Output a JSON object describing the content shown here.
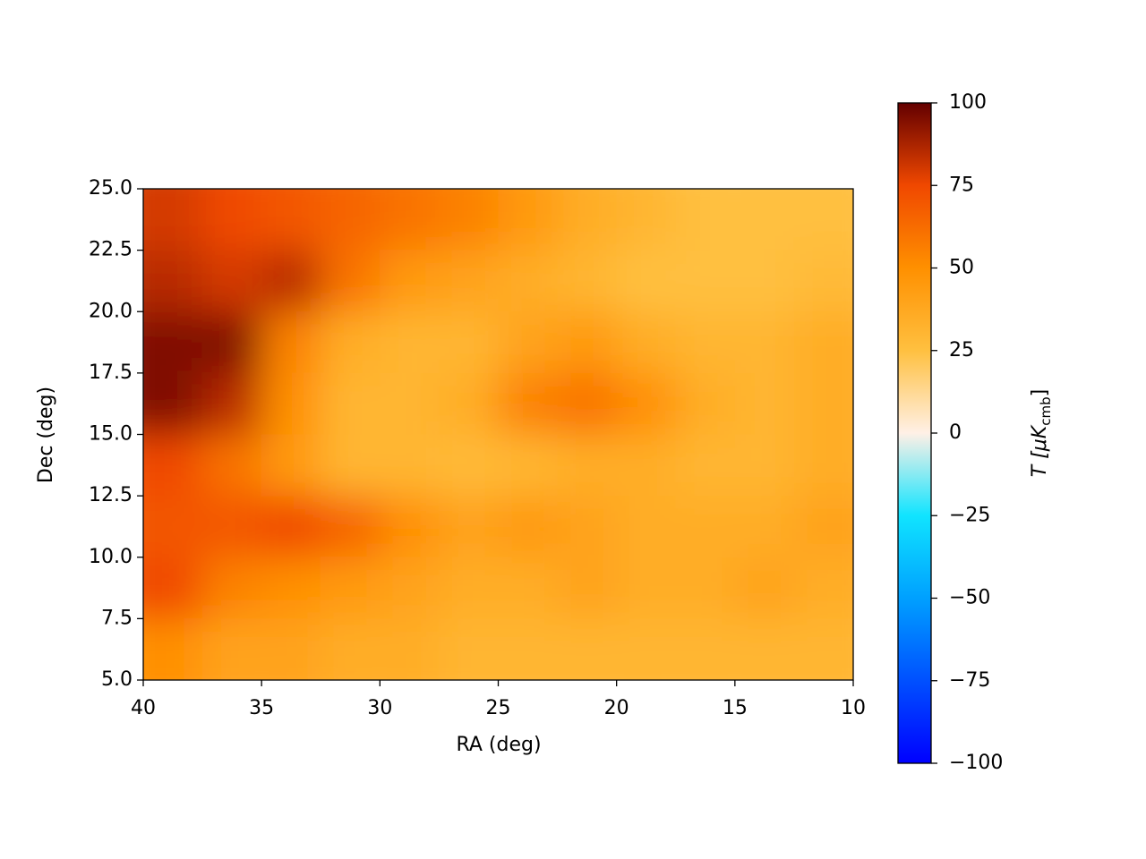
{
  "chart_data": {
    "type": "heatmap",
    "xlabel": "RA (deg)",
    "ylabel": "Dec (deg)",
    "colorbar_label": [
      "T [μK",
      "cmb",
      "]"
    ],
    "xlim": [
      40,
      10
    ],
    "ylim": [
      5,
      25
    ],
    "xticks": [
      40,
      35,
      30,
      25,
      20,
      15,
      10
    ],
    "yticks": [
      {
        "value": 5,
        "label": "5.0"
      },
      7.5,
      {
        "value": 10,
        "label": "10.0"
      },
      12.5,
      {
        "value": 15,
        "label": "15.0"
      },
      17.5,
      {
        "value": 20,
        "label": "20.0"
      },
      22.5,
      {
        "value": 25,
        "label": "25.0"
      }
    ],
    "x": [
      38.75,
      36.25,
      33.75,
      31.25,
      28.75,
      26.25,
      23.75,
      21.25,
      18.75,
      16.25,
      13.75,
      11.25
    ],
    "y": [
      23.75,
      21.25,
      18.75,
      16.25,
      13.75,
      11.25,
      8.75,
      6.25
    ],
    "z": [
      [
        80,
        75,
        70,
        65,
        60,
        55,
        45,
        35,
        30,
        25,
        25,
        25
      ],
      [
        85,
        80,
        85,
        60,
        45,
        40,
        35,
        30,
        25,
        25,
        25,
        28
      ],
      [
        95,
        95,
        55,
        35,
        30,
        30,
        40,
        45,
        35,
        30,
        30,
        35
      ],
      [
        95,
        85,
        50,
        30,
        30,
        35,
        55,
        60,
        50,
        35,
        30,
        35
      ],
      [
        75,
        60,
        45,
        30,
        30,
        28,
        30,
        35,
        35,
        30,
        30,
        35
      ],
      [
        70,
        70,
        75,
        65,
        50,
        40,
        45,
        40,
        35,
        35,
        35,
        40
      ],
      [
        75,
        55,
        50,
        45,
        40,
        35,
        35,
        40,
        35,
        35,
        40,
        35
      ],
      [
        50,
        40,
        40,
        35,
        35,
        30,
        30,
        30,
        30,
        30,
        30,
        30
      ]
    ],
    "clim": [
      -100,
      100
    ],
    "colorbar_ticks": [
      {
        "value": -100,
        "label": "−100"
      },
      {
        "value": -75,
        "label": "−75"
      },
      {
        "value": -50,
        "label": "−50"
      },
      {
        "value": -25,
        "label": "−25"
      },
      0,
      25,
      50,
      75,
      100
    ],
    "colorbar_colors": [
      "#0000ff",
      "#0050ff",
      "#00a0ff",
      "#10e4ff",
      "#fff0e6",
      "#ffc040",
      "#ff9000",
      "#f04800",
      "#640000"
    ]
  }
}
